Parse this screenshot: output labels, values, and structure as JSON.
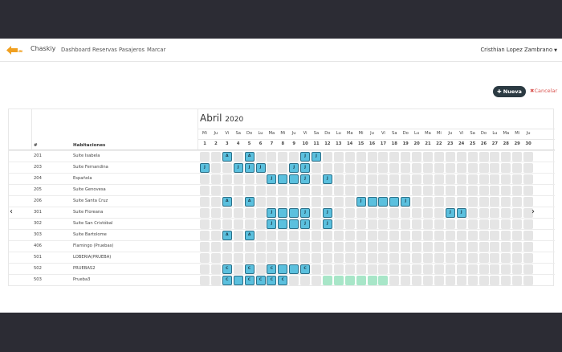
{
  "navbar": {
    "brand": "Chaskiy",
    "links": [
      "Dashboard",
      "Reservas",
      "Pasajeros",
      "Marcar"
    ],
    "user": "Cristhian Lopez Zambrano"
  },
  "toolbar": {
    "new_label": "Nueva",
    "cancel_label": "Cancelar"
  },
  "calendar": {
    "month": "Abril",
    "year": "2020",
    "col_num": "#",
    "col_rooms": "Habitaciones",
    "days": [
      {
        "dow": "Mi",
        "n": "1"
      },
      {
        "dow": "Ju",
        "n": "2"
      },
      {
        "dow": "Vi",
        "n": "3"
      },
      {
        "dow": "Sa",
        "n": "4"
      },
      {
        "dow": "Do",
        "n": "5"
      },
      {
        "dow": "Lu",
        "n": "6"
      },
      {
        "dow": "Ma",
        "n": "7"
      },
      {
        "dow": "Mi",
        "n": "8"
      },
      {
        "dow": "Ju",
        "n": "9"
      },
      {
        "dow": "Vi",
        "n": "10"
      },
      {
        "dow": "Sa",
        "n": "11"
      },
      {
        "dow": "Do",
        "n": "12"
      },
      {
        "dow": "Lu",
        "n": "13"
      },
      {
        "dow": "Ma",
        "n": "14"
      },
      {
        "dow": "Mi",
        "n": "15"
      },
      {
        "dow": "Ju",
        "n": "16"
      },
      {
        "dow": "Vi",
        "n": "17"
      },
      {
        "dow": "Sa",
        "n": "18"
      },
      {
        "dow": "Do",
        "n": "19"
      },
      {
        "dow": "Lu",
        "n": "20"
      },
      {
        "dow": "Ma",
        "n": "21"
      },
      {
        "dow": "Mi",
        "n": "22"
      },
      {
        "dow": "Ju",
        "n": "23"
      },
      {
        "dow": "Vi",
        "n": "24"
      },
      {
        "dow": "Sa",
        "n": "25"
      },
      {
        "dow": "Do",
        "n": "26"
      },
      {
        "dow": "Lu",
        "n": "27"
      },
      {
        "dow": "Ma",
        "n": "28"
      },
      {
        "dow": "Mi",
        "n": "29"
      },
      {
        "dow": "Ju",
        "n": "30"
      }
    ],
    "rooms": [
      {
        "num": "201",
        "name": "Suite Isabela",
        "cells": {
          "3": "A",
          "5": "A",
          "10": "J",
          "11": "J"
        }
      },
      {
        "num": "203",
        "name": "Suite Fernandina",
        "cells": {
          "1": "J",
          "4": "J",
          "5": "J",
          "6": "J",
          "9": "J",
          "10": "J"
        }
      },
      {
        "num": "204",
        "name": "Española",
        "cells": {
          "7": "J",
          "8": "",
          "9": "",
          "10": "J",
          "12": "J"
        }
      },
      {
        "num": "205",
        "name": "Suite Genovesa",
        "cells": {}
      },
      {
        "num": "206",
        "name": "Suite Santa Cruz",
        "cells": {
          "3": "A",
          "5": "A",
          "15": "J",
          "16": "",
          "17": "",
          "18": "",
          "19": "J"
        }
      },
      {
        "num": "301",
        "name": "Suite Floreana",
        "cells": {
          "7": "J",
          "8": "",
          "9": "",
          "10": "J",
          "12": "J",
          "23": "J",
          "24": "J"
        }
      },
      {
        "num": "302",
        "name": "Suite San Cristóbal",
        "cells": {
          "7": "J",
          "8": "",
          "9": "",
          "10": "J",
          "12": "J"
        }
      },
      {
        "num": "303",
        "name": "Suite Bartolome",
        "cells": {
          "3": "A",
          "5": "A"
        }
      },
      {
        "num": "406",
        "name": "Flamingo (Pruebas)",
        "cells": {}
      },
      {
        "num": "501",
        "name": "LOBERIA(PRUEBA)",
        "cells": {}
      },
      {
        "num": "502",
        "name": "PRUEBAS2",
        "cells": {
          "3": "C",
          "5": "C",
          "7": "C",
          "8": "",
          "9": "",
          "10": "C"
        }
      },
      {
        "num": "503",
        "name": "Prueba3",
        "cells": {
          "3": "C",
          "4": "",
          "5": "C",
          "6": "C",
          "7": "C",
          "8": "C"
        },
        "free": [
          12,
          13,
          14,
          15,
          16,
          17
        ]
      }
    ]
  },
  "icons": {
    "logo": "arrow-logo-icon",
    "prev": "chevron-left-icon",
    "next": "chevron-right-icon"
  },
  "colors": {
    "reserved": "#5bc0de",
    "available": "#a8e6c8",
    "empty": "#e5e5e5",
    "nueva": "#2b3a42",
    "cancel": "#d9534f"
  }
}
